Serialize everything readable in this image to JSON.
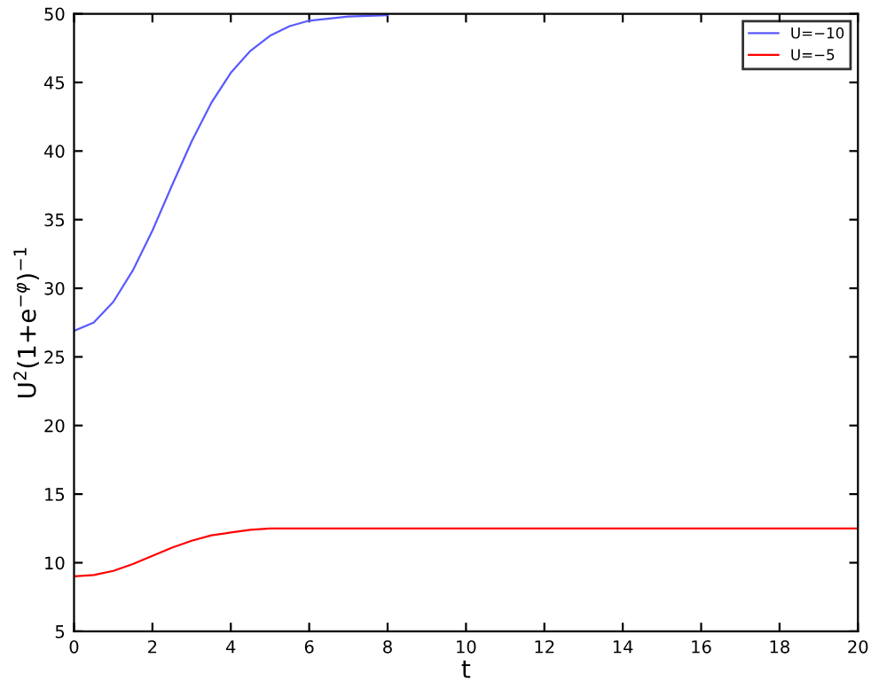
{
  "chart_data": {
    "type": "line",
    "xlabel": "t",
    "ylabel": "U$^{2}$(1+e$^{−φ}$)$^{−1}$",
    "xlim": [
      0,
      20
    ],
    "xticks": [
      0,
      2,
      4,
      6,
      8,
      10,
      12,
      14,
      16,
      18,
      20
    ],
    "ylim": [
      5,
      50
    ],
    "yticks": [
      5,
      10,
      15,
      20,
      25,
      30,
      35,
      40,
      45,
      50
    ],
    "grid": false,
    "legend": "top right",
    "series": [
      {
        "name": "U=−10",
        "color": "#5a5aff",
        "x": [
          0,
          0.5,
          1,
          1.5,
          2,
          2.5,
          3,
          3.5,
          4,
          4.5,
          5,
          5.5,
          6,
          7,
          8
        ],
        "values": [
          26.9,
          27.5,
          29,
          31.3,
          34.2,
          37.5,
          40.7,
          43.5,
          45.7,
          47.3,
          48.4,
          49.1,
          49.5,
          49.8,
          49.9
        ]
      },
      {
        "name": "U=−5",
        "color": "#ff0000",
        "x": [
          0,
          0.5,
          1,
          1.5,
          2,
          2.5,
          3,
          3.5,
          4,
          4.5,
          5,
          6,
          8,
          10,
          12,
          14,
          16,
          18,
          20
        ],
        "values": [
          9.0,
          9.1,
          9.4,
          9.9,
          10.5,
          11.1,
          11.6,
          12.0,
          12.2,
          12.4,
          12.5,
          12.5,
          12.5,
          12.5,
          12.5,
          12.5,
          12.5,
          12.5,
          12.5
        ]
      }
    ]
  }
}
